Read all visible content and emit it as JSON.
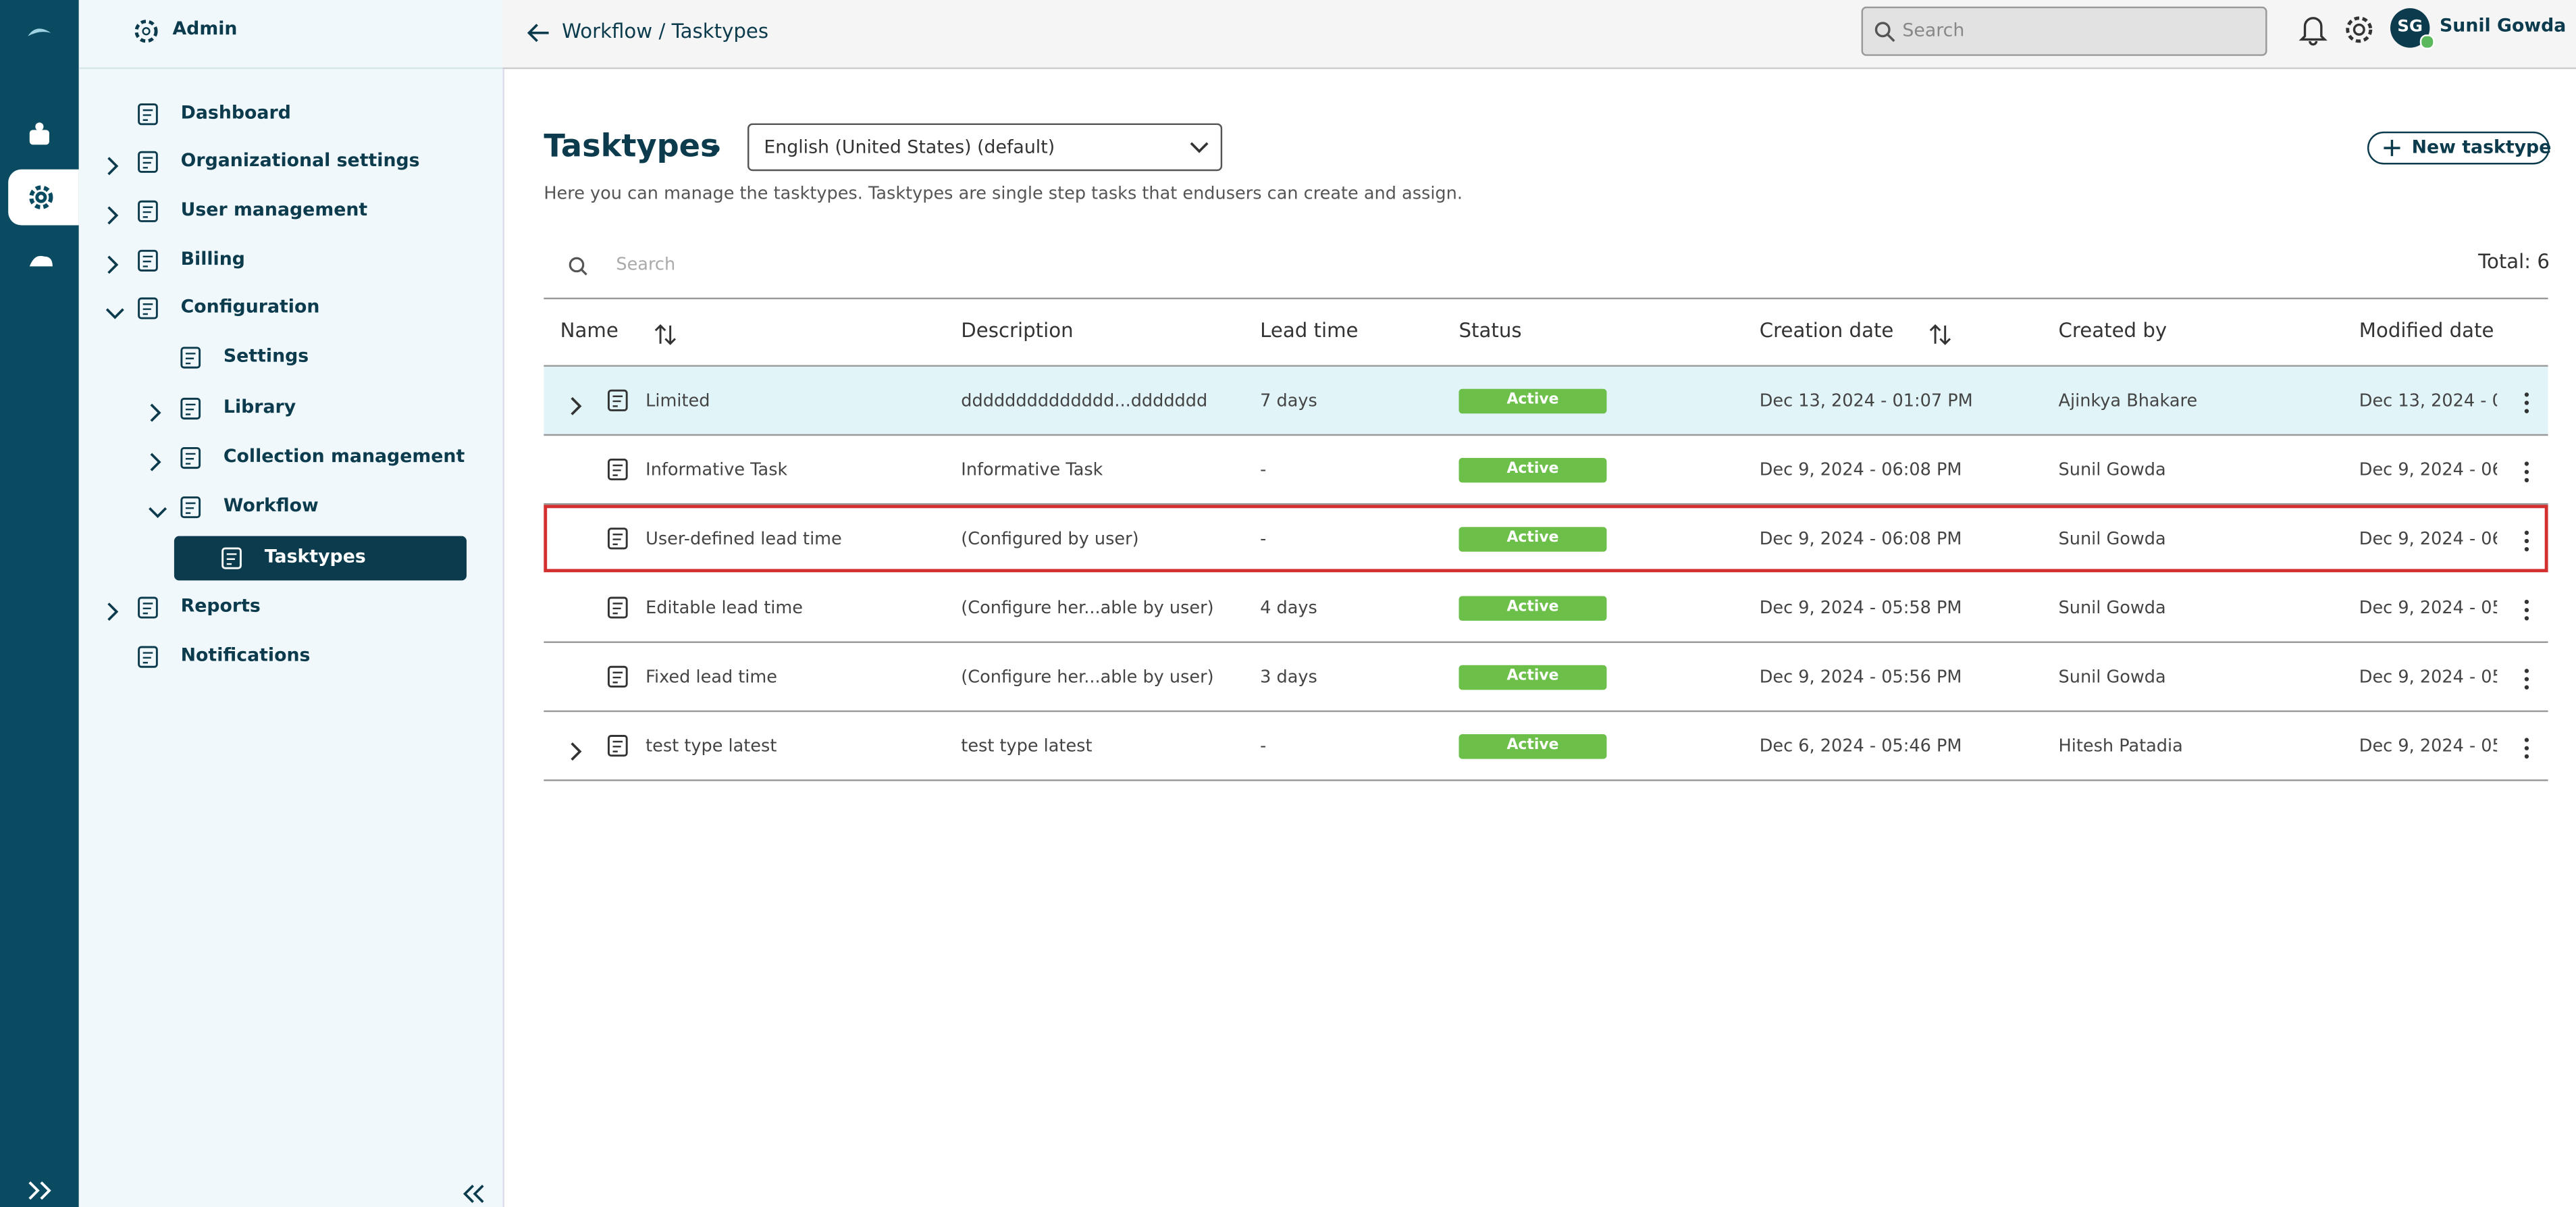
{
  "header": {
    "breadcrumb_parent": "Workflow",
    "breadcrumb_sep": "/",
    "breadcrumb_current": "Tasktypes",
    "search_placeholder": "Search",
    "avatar": "SG",
    "user": "Sunil Gowda"
  },
  "sidebar": {
    "title": "Admin",
    "items": [
      "Dashboard",
      "Organizational settings",
      "User management",
      "Billing",
      "Configuration",
      "Settings",
      "Library",
      "Collection management",
      "Workflow",
      "Tasktypes",
      "Reports",
      "Notifications"
    ]
  },
  "page": {
    "title": "Tasktypes",
    "language": "English (United States) (default)",
    "new_button": "New tasktype",
    "description": "Here you can manage the tasktypes. Tasktypes are single step tasks that endusers can create and assign.",
    "search_placeholder": "Search",
    "total": "Total: 6"
  },
  "table": {
    "columns": [
      "Name",
      "Description",
      "Lead time",
      "Status",
      "Creation date",
      "Created by",
      "Modified date"
    ],
    "selected_row": 0,
    "outlined_row": 2,
    "rows": [
      {
        "name": "Limited",
        "description": "dddddddddddddd...ddddddd",
        "lead_time": "7 days",
        "status": "Active",
        "creation_date": "Dec 13, 2024 - 01:07 PM",
        "created_by": "Ajinkya Bhakare",
        "modified_date": "Dec 13, 2024 - 0",
        "expandable": true
      },
      {
        "name": "Informative Task",
        "description": "Informative Task",
        "lead_time": "-",
        "status": "Active",
        "creation_date": "Dec 9, 2024 - 06:08 PM",
        "created_by": "Sunil Gowda",
        "modified_date": "Dec 9, 2024 - 06",
        "expandable": false
      },
      {
        "name": "User-defined lead time",
        "description": "(Configured by user)",
        "lead_time": "-",
        "status": "Active",
        "creation_date": "Dec 9, 2024 - 06:08 PM",
        "created_by": "Sunil Gowda",
        "modified_date": "Dec 9, 2024 - 06",
        "expandable": false
      },
      {
        "name": "Editable lead time",
        "description": "(Configure her...able by user)",
        "lead_time": "4 days",
        "status": "Active",
        "creation_date": "Dec 9, 2024 - 05:58 PM",
        "created_by": "Sunil Gowda",
        "modified_date": "Dec 9, 2024 - 05",
        "expandable": false
      },
      {
        "name": "Fixed lead time",
        "description": "(Configure her...able by user)",
        "lead_time": "3 days",
        "status": "Active",
        "creation_date": "Dec 9, 2024 - 05:56 PM",
        "created_by": "Sunil Gowda",
        "modified_date": "Dec 9, 2024 - 05",
        "expandable": false
      },
      {
        "name": "test type latest",
        "description": "test type latest",
        "lead_time": "-",
        "status": "Active",
        "creation_date": "Dec 6, 2024 - 05:46 PM",
        "created_by": "Hitesh Patadia",
        "modified_date": "Dec 9, 2024 - 05",
        "expandable": true
      }
    ]
  }
}
